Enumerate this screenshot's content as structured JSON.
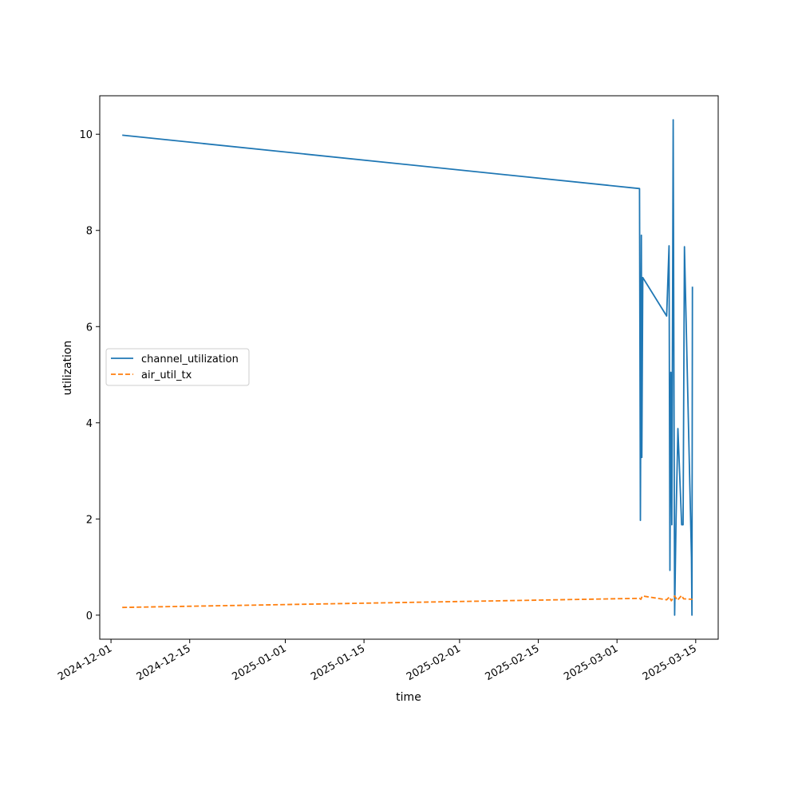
{
  "chart_data": {
    "type": "line",
    "title": "",
    "xlabel": "time",
    "ylabel": "utilization",
    "xlim": [
      "2024-11-29",
      "2025-03-19"
    ],
    "ylim": [
      -0.5,
      10.8
    ],
    "xticks": [
      "2024-12-01",
      "2024-12-15",
      "2025-01-01",
      "2025-01-15",
      "2025-02-01",
      "2025-02-15",
      "2025-03-01",
      "2025-03-15"
    ],
    "yticks": [
      0,
      2,
      4,
      6,
      8,
      10
    ],
    "grid": false,
    "legend_position": "center-left",
    "series": [
      {
        "name": "channel_utilization",
        "color": "#1f77b4",
        "dash": "solid",
        "points": [
          [
            "2024-12-03T00:00",
            9.98
          ],
          [
            "2025-03-05T00:00",
            8.87
          ],
          [
            "2025-03-05T04:00",
            1.97
          ],
          [
            "2025-03-05T08:00",
            7.9
          ],
          [
            "2025-03-05T10:00",
            3.28
          ],
          [
            "2025-03-05T14:00",
            7.02
          ],
          [
            "2025-03-09T20:00",
            6.22
          ],
          [
            "2025-03-10T06:00",
            7.68
          ],
          [
            "2025-03-10T10:00",
            0.93
          ],
          [
            "2025-03-10T14:00",
            5.05
          ],
          [
            "2025-03-10T18:00",
            1.88
          ],
          [
            "2025-03-11T00:00",
            10.3
          ],
          [
            "2025-03-11T06:00",
            0.0
          ],
          [
            "2025-03-11T12:00",
            2.0
          ],
          [
            "2025-03-11T20:00",
            3.88
          ],
          [
            "2025-03-12T12:00",
            1.88
          ],
          [
            "2025-03-12T18:00",
            1.88
          ],
          [
            "2025-03-13T00:00",
            7.66
          ],
          [
            "2025-03-14T06:00",
            1.2
          ],
          [
            "2025-03-14T08:00",
            0.0
          ],
          [
            "2025-03-14T10:00",
            6.83
          ]
        ]
      },
      {
        "name": "air_util_tx",
        "color": "#ff7f0e",
        "dash": "dashed",
        "points": [
          [
            "2024-12-03T00:00",
            0.16
          ],
          [
            "2025-03-05T00:00",
            0.35
          ],
          [
            "2025-03-05T06:00",
            0.33
          ],
          [
            "2025-03-05T12:00",
            0.4
          ],
          [
            "2025-03-09T20:00",
            0.32
          ],
          [
            "2025-03-10T08:00",
            0.38
          ],
          [
            "2025-03-10T16:00",
            0.3
          ],
          [
            "2025-03-11T06:00",
            0.4
          ],
          [
            "2025-03-11T18:00",
            0.31
          ],
          [
            "2025-03-12T12:00",
            0.41
          ],
          [
            "2025-03-12T20:00",
            0.34
          ],
          [
            "2025-03-14T10:00",
            0.33
          ]
        ]
      }
    ]
  }
}
